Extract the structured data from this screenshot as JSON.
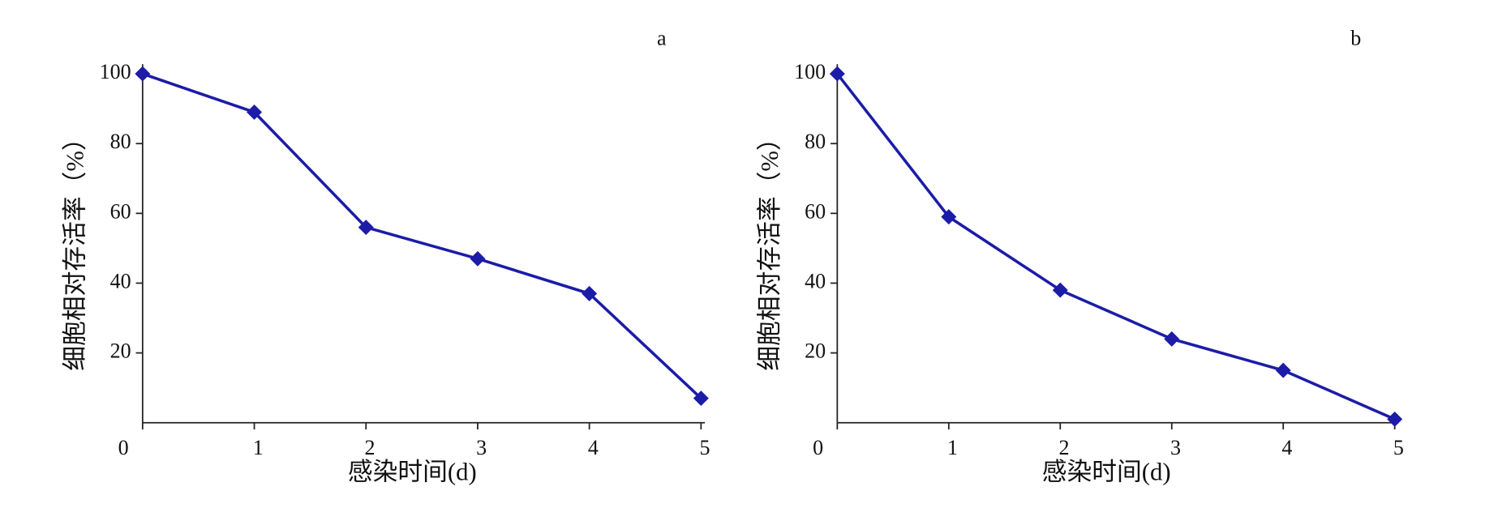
{
  "chart_data": [
    {
      "type": "line",
      "title": "a",
      "x_label": "感染时间(d)",
      "y_label": "细胞相对存活率（%）",
      "x": [
        0,
        1,
        2,
        3,
        4,
        5
      ],
      "series": [
        {
          "name": null,
          "color": "#1c1ca8",
          "values": [
            100,
            89,
            56,
            47,
            37,
            7
          ]
        }
      ],
      "xlim": [
        0,
        5
      ],
      "xticks": [
        0,
        1,
        2,
        3,
        4,
        5
      ],
      "ylim": [
        0,
        100
      ],
      "yticks": [
        20,
        40,
        60,
        80,
        100
      ],
      "grid": false
    },
    {
      "type": "line",
      "title": "b",
      "x_label": "感染时间(d)",
      "y_label": "细胞相对存活率（%）",
      "x": [
        0,
        1,
        2,
        3,
        4,
        5
      ],
      "series": [
        {
          "name": null,
          "color": "#1c1ca8",
          "values": [
            100,
            59,
            38,
            24,
            15,
            1
          ]
        }
      ],
      "xlim": [
        0,
        5
      ],
      "xticks": [
        0,
        1,
        2,
        3,
        4,
        5
      ],
      "ylim": [
        0,
        100
      ],
      "yticks": [
        20,
        40,
        60,
        80,
        100
      ],
      "grid": false
    }
  ]
}
